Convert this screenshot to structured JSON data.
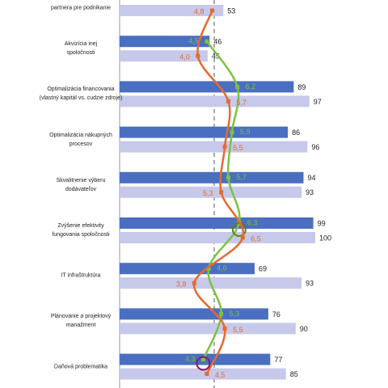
{
  "chart_data": {
    "type": "bar",
    "categories": [
      "partnera pre podnikanie",
      "Akvizícia inej\nspoločnosti",
      "Optimalizácia financovania\n(vlastný kapitál vs. cudzie zdroje)",
      "Optimalizácia nákupných\nprocesov",
      "Skvalitnenie výberu\ndodávateľov",
      "Zvýšenie efektivity\nfungovania spoločnosti",
      "IT infraštruktúra",
      "Plánovanie a projektový\nmanažment",
      "Daňová problematika"
    ],
    "series": [
      {
        "type": "bar",
        "color": "#4a6fc1",
        "values": [
          null,
          46,
          89,
          86,
          94,
          99,
          69,
          76,
          77
        ]
      },
      {
        "type": "bar",
        "color": "#c6c9ea",
        "values": [
          53,
          45,
          97,
          96,
          93,
          100,
          93,
          90,
          85
        ]
      },
      {
        "type": "line",
        "axis": "x2",
        "color": "#7cc242",
        "values": [
          null,
          4.5,
          6.2,
          5.9,
          5.7,
          6.3,
          4.6,
          5.3,
          4.3
        ],
        "value_labels": [
          null,
          "4,5",
          "6,2",
          "5,9",
          "5,7",
          "6,3",
          "4,6",
          "5,3",
          "4,3"
        ]
      },
      {
        "type": "line",
        "axis": "x2",
        "color": "#e8692c",
        "values": [
          4.8,
          4.0,
          5.7,
          5.5,
          5.3,
          6.5,
          3.8,
          5.5,
          4.5
        ],
        "value_labels": [
          "4,8",
          "4,0",
          "5,7",
          "5,5",
          "5,3",
          "6,5",
          "3,8",
          "5,5",
          "4,5"
        ]
      }
    ],
    "xlim": [
      0,
      100
    ],
    "x2lim": [
      0,
      10
    ]
  }
}
